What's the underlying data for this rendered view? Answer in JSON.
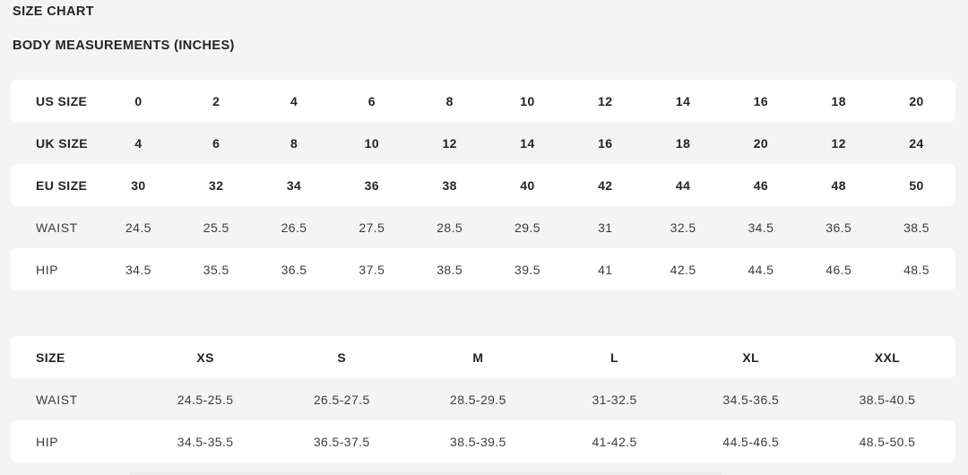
{
  "header": {
    "title": "SIZE CHART",
    "subtitle": "BODY MEASUREMENTS (INCHES)"
  },
  "colors": {
    "page_background": "#f4f4f4",
    "row_highlight": "#ffffff",
    "text_bold": "#242424",
    "text_regular": "#3d3d3d"
  },
  "numeric_table": {
    "rows": [
      {
        "label": "US SIZE",
        "bold": true,
        "values": [
          "0",
          "2",
          "4",
          "6",
          "8",
          "10",
          "12",
          "14",
          "16",
          "18",
          "20"
        ]
      },
      {
        "label": "UK SIZE",
        "bold": true,
        "values": [
          "4",
          "6",
          "8",
          "10",
          "12",
          "14",
          "16",
          "18",
          "20",
          "12",
          "24"
        ]
      },
      {
        "label": "EU SIZE",
        "bold": true,
        "values": [
          "30",
          "32",
          "34",
          "36",
          "38",
          "40",
          "42",
          "44",
          "46",
          "48",
          "50"
        ]
      },
      {
        "label": "WAIST",
        "bold": false,
        "values": [
          "24.5",
          "25.5",
          "26.5",
          "27.5",
          "28.5",
          "29.5",
          "31",
          "32.5",
          "34.5",
          "36.5",
          "38.5"
        ]
      },
      {
        "label": "HIP",
        "bold": false,
        "values": [
          "34.5",
          "35.5",
          "36.5",
          "37.5",
          "38.5",
          "39.5",
          "41",
          "42.5",
          "44.5",
          "46.5",
          "48.5"
        ]
      }
    ]
  },
  "alpha_table": {
    "rows": [
      {
        "label": "SIZE",
        "bold": true,
        "values": [
          "XS",
          "S",
          "M",
          "L",
          "XL",
          "XXL"
        ]
      },
      {
        "label": "WAIST",
        "bold": false,
        "values": [
          "24.5-25.5",
          "26.5-27.5",
          "28.5-29.5",
          "31-32.5",
          "34.5-36.5",
          "38.5-40.5"
        ]
      },
      {
        "label": "HIP",
        "bold": false,
        "values": [
          "34.5-35.5",
          "36.5-37.5",
          "38.5-39.5",
          "41-42.5",
          "44.5-46.5",
          "48.5-50.5"
        ]
      }
    ]
  }
}
